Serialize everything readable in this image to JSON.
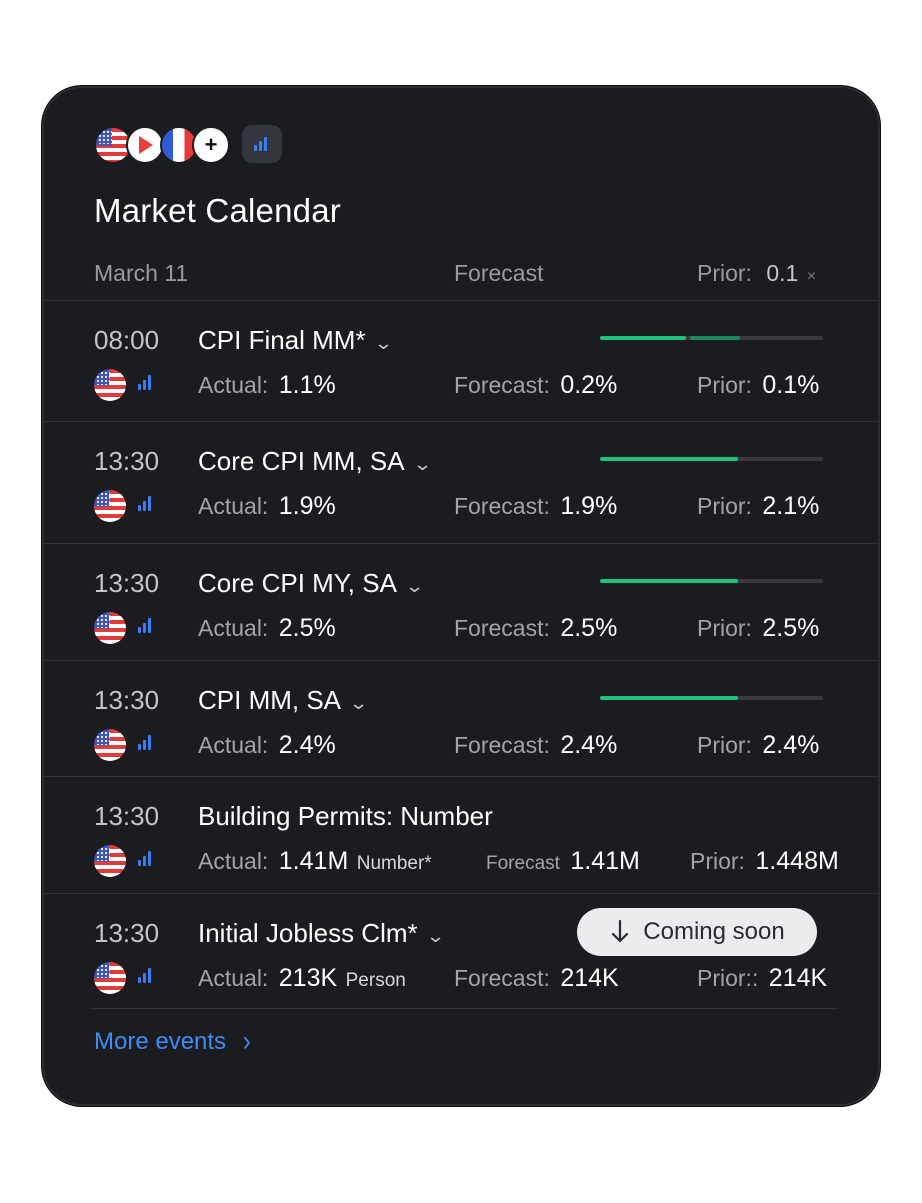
{
  "title": "Market Calendar",
  "header": {
    "date": "March 11",
    "forecast_label": "Forecast",
    "prior_label": "Prior:",
    "prior_value": "0.1",
    "prior_suffix": "×"
  },
  "events": [
    {
      "time": "08:00",
      "name": "CPI Final MM*",
      "has_chevron": true,
      "actual_label": "Actual:",
      "actual": "1.1%",
      "actual_unit": "",
      "forecast_label": "Forecast:",
      "forecast": "0.2%",
      "prior_label": "Prior:",
      "prior": "0.1%",
      "progress": 0.65
    },
    {
      "time": "13:30",
      "name": "Core CPI MM, SA",
      "has_chevron": true,
      "actual_label": "Actual:",
      "actual": "1.9%",
      "actual_unit": "",
      "forecast_label": "Forecast:",
      "forecast": "1.9%",
      "prior_label": "Prior:",
      "prior": "2.1%",
      "progress": 0.62
    },
    {
      "time": "13:30",
      "name": "Core CPI MY, SA",
      "has_chevron": true,
      "actual_label": "Actual:",
      "actual": "2.5%",
      "actual_unit": "",
      "forecast_label": "Forecast:",
      "forecast": "2.5%",
      "prior_label": "Prior:",
      "prior": "2.5%",
      "progress": 0.62
    },
    {
      "time": "13:30",
      "name": "CPI MM, SA",
      "has_chevron": true,
      "actual_label": "Actual:",
      "actual": "2.4%",
      "actual_unit": "",
      "forecast_label": "Forecast:",
      "forecast": "2.4%",
      "prior_label": "Prior:",
      "prior": "2.4%",
      "progress": 0.62
    },
    {
      "time": "13:30",
      "name": "Building Permits: Number",
      "has_chevron": false,
      "actual_label": "Actual:",
      "actual": "1.41M",
      "actual_unit": "Number*",
      "forecast_label": "Forecast",
      "forecast": "1.41M",
      "prior_label": "Prior:",
      "prior": "1.448M",
      "progress": null
    },
    {
      "time": "13:30",
      "name": "Initial Jobless Clm*",
      "has_chevron": true,
      "actual_label": "Actual:",
      "actual": "213K",
      "actual_unit": "Person",
      "forecast_label": "Forecast:",
      "forecast": "214K",
      "prior_label": "Prior::",
      "prior": "214K",
      "progress": null
    }
  ],
  "coming_soon": "Coming soon",
  "more_events": "More events",
  "chevron_glyph": "⌄",
  "colors": {
    "accent_green": "#1fc27a",
    "link_blue": "#3d8bf3",
    "card_bg": "#1b1c20"
  }
}
